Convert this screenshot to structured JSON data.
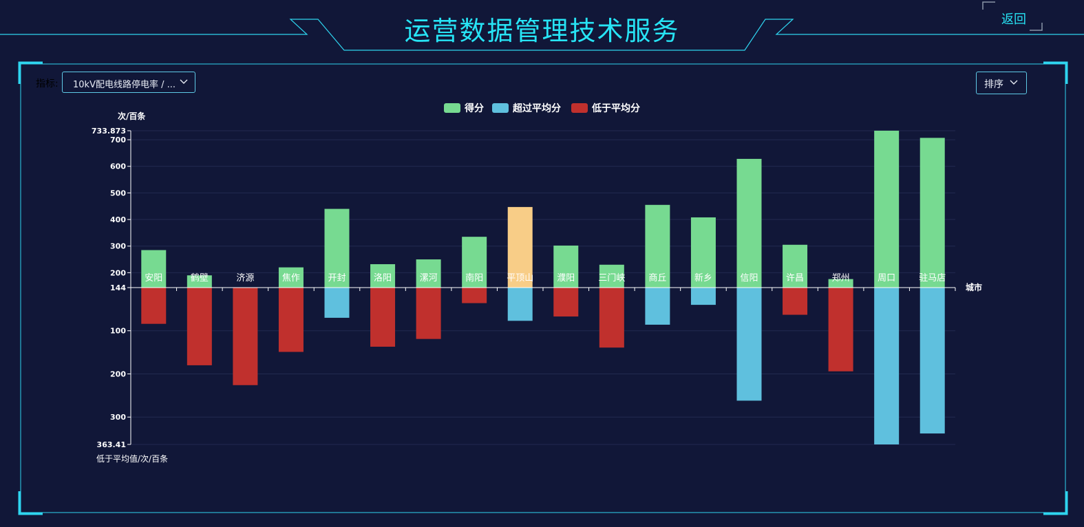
{
  "header": {
    "title": "运营数据管理技术服务",
    "back_label": "返回"
  },
  "controls": {
    "metric_label": "指标:",
    "metric_value": "10kV配电线路停电率 / ...",
    "sort_label": "排序"
  },
  "colors": {
    "score": "#77da91",
    "above_avg": "#5fc0de",
    "below_avg": "#c0302d",
    "highlight": "#f8cd87",
    "accent": "#27e4f5"
  },
  "chart_data": {
    "type": "bar",
    "ylabel": "次/百条",
    "xlabel": "城市",
    "y2label": "低于平均值/次/百条",
    "legend": [
      "得分",
      "超过平均分",
      "低于平均分"
    ],
    "legend_position": "top-center",
    "average": 144,
    "ylim_top": [
      144,
      733.873
    ],
    "yticks_top": [
      733.873,
      700,
      600,
      500,
      400,
      300,
      200,
      144
    ],
    "ylim_bottom": [
      0,
      363.41
    ],
    "yticks_bottom": [
      100,
      200,
      300,
      363.41
    ],
    "categories": [
      "安阳",
      "鹤壁",
      "济源",
      "焦作",
      "开封",
      "洛阳",
      "漯河",
      "南阳",
      "平顶山",
      "濮阳",
      "三门峡",
      "商丘",
      "新乡",
      "信阳",
      "许昌",
      "郑州",
      "周口",
      "驻马店"
    ],
    "values": [
      285,
      190,
      144,
      220,
      440,
      232,
      250,
      335,
      447,
      302,
      230,
      455,
      408,
      628,
      305,
      176,
      734,
      707
    ],
    "deviation": [
      {
        "kind": "below",
        "value": 84
      },
      {
        "kind": "below",
        "value": 180
      },
      {
        "kind": "below",
        "value": 226
      },
      {
        "kind": "below",
        "value": 149
      },
      {
        "kind": "above",
        "value": 70
      },
      {
        "kind": "below",
        "value": 137
      },
      {
        "kind": "below",
        "value": 119
      },
      {
        "kind": "below",
        "value": 36
      },
      {
        "kind": "above",
        "value": 77
      },
      {
        "kind": "below",
        "value": 67
      },
      {
        "kind": "below",
        "value": 139
      },
      {
        "kind": "above",
        "value": 86
      },
      {
        "kind": "above",
        "value": 40
      },
      {
        "kind": "above",
        "value": 262
      },
      {
        "kind": "below",
        "value": 63
      },
      {
        "kind": "below",
        "value": 194
      },
      {
        "kind": "above",
        "value": 363.41
      },
      {
        "kind": "above",
        "value": 338
      }
    ],
    "highlight_index": 8,
    "grid": true
  }
}
